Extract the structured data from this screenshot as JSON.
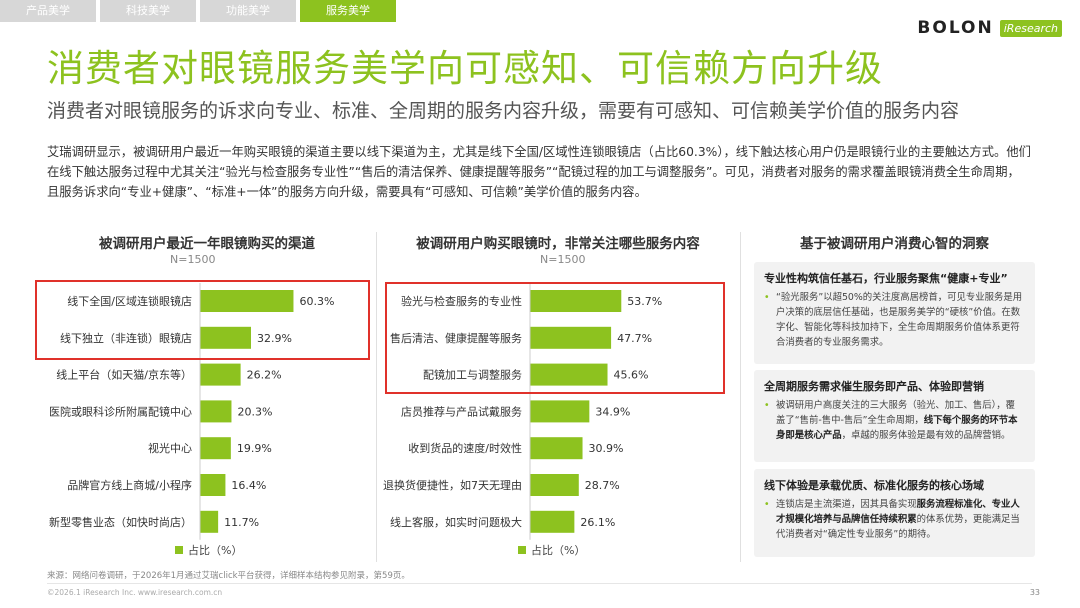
{
  "nav": {
    "tabs": [
      "产品美学",
      "科技美学",
      "功能美学",
      "服务美学"
    ],
    "active_index": 3
  },
  "brand": {
    "name": "BOLON",
    "partner": "iResearch"
  },
  "title": "消费者对眼镜服务美学向可感知、可信赖方向升级",
  "subtitle": "消费者对眼镜服务的诉求向专业、标准、全周期的服务内容升级，需要有可感知、可信赖美学价值的服务内容",
  "intro": "艾瑞调研显示，被调研用户最近一年购买眼镜的渠道主要以线下渠道为主，尤其是线下全国/区域性连锁眼镜店（占比60.3%），线下触达核心用户仍是眼镜行业的主要触达方式。他们在线下触达服务过程中尤其关注“验光与检查服务专业性”“售后的清洁保养、健康提醒等服务”“配镜过程的加工与调整服务”。可见，消费者对服务的需求覆盖眼镜消费全生命周期，且服务诉求向“专业+健康”、“标准+一体”的服务方向升级，需要具有“可感知、可信赖”美学价值的服务内容。",
  "colors": {
    "accent": "#8dc21f",
    "highlight_box": "#e0312a",
    "tab_inactive": "#d7d7d7"
  },
  "chart_data": [
    {
      "type": "bar",
      "orientation": "horizontal",
      "title": "被调研用户最近一年眼镜购买的渠道",
      "note": "N=1500",
      "legend": "占比（%）",
      "unit": "%",
      "categories": [
        "线下全国/区域连锁眼镜店",
        "线下独立（非连锁）眼镜店",
        "线上平台（如天猫/京东等）",
        "医院或眼科诊所附属配镜中心",
        "视光中心",
        "品牌官方线上商城/小程序",
        "新型零售业态（如快时尚店）"
      ],
      "values": [
        60.3,
        32.9,
        26.2,
        20.3,
        19.9,
        16.4,
        11.7
      ],
      "highlighted": [
        0,
        1
      ]
    },
    {
      "type": "bar",
      "orientation": "horizontal",
      "title": "被调研用户购买眼镜时，非常关注哪些服务内容",
      "note": "N=1500",
      "legend": "占比（%）",
      "unit": "%",
      "categories": [
        "验光与检查服务的专业性",
        "售后清洁、健康提醒等服务",
        "配镜加工与调整服务",
        "店员推荐与产品试戴服务",
        "收到货品的速度/时效性",
        "退换货便捷性，如7天无理由",
        "线上客服，如实时问题极大"
      ],
      "values": [
        53.7,
        47.7,
        45.6,
        34.9,
        30.9,
        28.7,
        26.1
      ],
      "highlighted": [
        0,
        1,
        2
      ]
    }
  ],
  "insights": {
    "title": "基于被调研用户消费心智的洞察",
    "cards": [
      {
        "heading": "专业性构筑信任基石，行业服务聚焦“健康+专业”",
        "body": "“验光服务”以超50%的关注度高居榜首，可见专业服务是用户决策的底层信任基础，也是服务美学的“硬核”价值。在数字化、智能化等科技加持下，全生命周期服务价值体系更符合消费者的专业服务需求。"
      },
      {
        "heading": "全周期服务需求催生服务即产品、体验即营销",
        "body_plain": "被调研用户高度关注的三大服务（验光、加工、售后），覆盖了“售前-售中-售后”全生命周期，",
        "body_bold": "线下每个服务的环节本身即是核心产品",
        "body_end": "，卓越的服务体验是最有效的品牌营销。"
      },
      {
        "heading": "线下体验是承载优质、标准化服务的核心场域",
        "body_plain": "连锁店是主流渠道，因其具备实现",
        "body_bold": "服务流程标准化、专业人才规模化培养与品牌信任持续积累",
        "body_end": "的体系优势，更能满足当代消费者对“确定性专业服务”的期待。"
      }
    ]
  },
  "source": "来源：网络问卷调研，于2026年1月通过艾瑞click平台获得，详细样本结构参见附录，第59页。",
  "copyright": "©2026.1 iResearch Inc. www.iresearch.com.cn",
  "page_number": "33"
}
